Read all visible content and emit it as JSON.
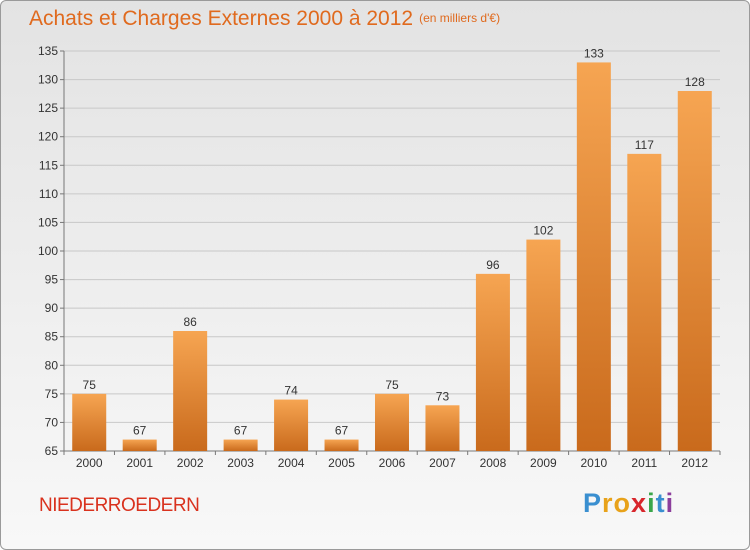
{
  "title": "Achats et Charges Externes 2000 à 2012",
  "subtitle": "(en milliers d'€)",
  "place": "NIEDERROEDERN",
  "brand": {
    "letters": [
      "P",
      "r",
      "o",
      "x",
      "i",
      "t",
      "i"
    ],
    "colors": [
      "#3a8fd0",
      "#e8a21a",
      "#e8a21a",
      "#d8262c",
      "#3aa64a",
      "#3a8fd0",
      "#8c3e9c"
    ]
  },
  "colors": {
    "accent": "#e06a1e",
    "bar_top": "#f6a552",
    "bar_bottom": "#c96a1c",
    "place": "#d9321e"
  },
  "chart_data": {
    "type": "bar",
    "title": "Achats et Charges Externes 2000 à 2012",
    "subtitle": "(en milliers d'€)",
    "categories": [
      "2000",
      "2001",
      "2002",
      "2003",
      "2004",
      "2005",
      "2006",
      "2007",
      "2008",
      "2009",
      "2010",
      "2011",
      "2012"
    ],
    "values": [
      75,
      67,
      86,
      67,
      74,
      67,
      75,
      73,
      96,
      102,
      133,
      117,
      128
    ],
    "ylim": [
      65,
      135
    ],
    "yticks": [
      65,
      70,
      75,
      80,
      85,
      90,
      95,
      100,
      105,
      110,
      115,
      120,
      125,
      130,
      135
    ],
    "grid": true,
    "xlabel": "",
    "ylabel": ""
  }
}
